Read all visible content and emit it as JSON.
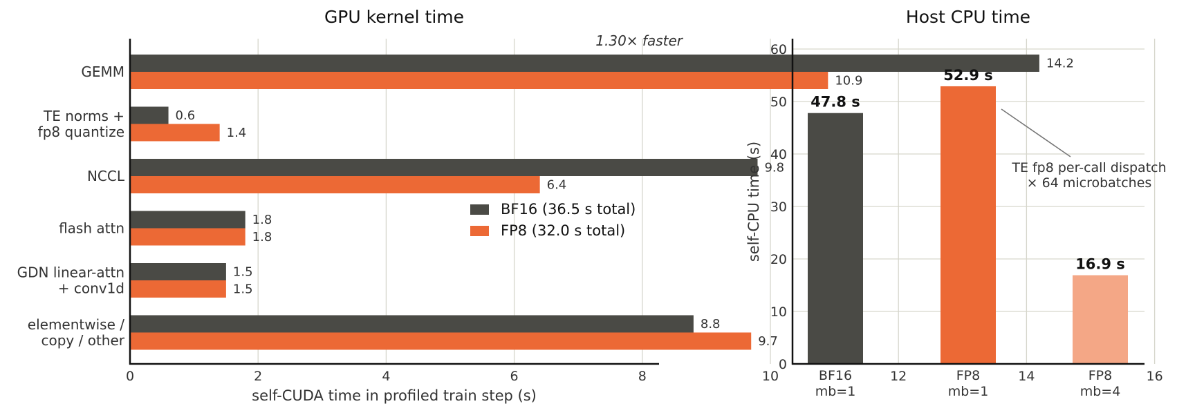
{
  "colors": {
    "bf16": "#4a4a45",
    "fp8": "#ec6935",
    "fp8_light": "#f4a786",
    "grid": "#d6d6cc",
    "axis": "#111111",
    "text": "#333333",
    "callout_line": "#777777"
  },
  "chart_data": [
    {
      "type": "bar",
      "orientation": "horizontal",
      "title": "GPU kernel time",
      "xlabel": "self-CUDA time in profiled train step (s)",
      "ylabel": "",
      "categories": [
        [
          "GEMM"
        ],
        [
          "TE norms +",
          "fp8 quantize"
        ],
        [
          "NCCL"
        ],
        [
          "flash attn"
        ],
        [
          "GDN linear-attn",
          "+ conv1d"
        ],
        [
          "elementwise /",
          "copy / other"
        ]
      ],
      "series": [
        {
          "name": "BF16 (36.5 s total)",
          "color_key": "bf16",
          "values": [
            14.2,
            0.6,
            9.8,
            1.8,
            1.5,
            8.8
          ],
          "labels": [
            "14.2",
            "0.6",
            "9.8",
            "1.8",
            "1.5",
            "8.8"
          ]
        },
        {
          "name": "FP8 (32.0 s total)",
          "color_key": "fp8",
          "values": [
            10.9,
            1.4,
            6.4,
            1.8,
            1.5,
            9.7
          ],
          "labels": [
            "10.9",
            "1.4",
            "6.4",
            "1.8",
            "1.5",
            "9.7"
          ]
        }
      ],
      "xlim": [
        0,
        16.5
      ],
      "xticks": [
        0,
        2,
        4,
        6,
        8,
        10,
        12,
        14,
        16
      ],
      "grid": "vertical",
      "legend": "center-right",
      "annotation": "1.30× faster"
    },
    {
      "type": "bar",
      "title": "Host CPU time",
      "xlabel": "",
      "ylabel": "self-CPU time (s)",
      "categories": [
        [
          "BF16",
          "mb=1"
        ],
        [
          "FP8",
          "mb=1"
        ],
        [
          "FP8",
          "mb=4"
        ]
      ],
      "values": [
        47.8,
        52.9,
        16.9
      ],
      "value_labels": [
        "47.8 s",
        "52.9 s",
        "16.9 s"
      ],
      "bar_color_keys": [
        "bf16",
        "fp8",
        "fp8_light"
      ],
      "ylim": [
        0,
        62
      ],
      "yticks": [
        0,
        10,
        20,
        30,
        40,
        50,
        60
      ],
      "grid": "horizontal",
      "annotation": [
        "TE fp8 per-call dispatch",
        "× 64 microbatches"
      ]
    }
  ]
}
